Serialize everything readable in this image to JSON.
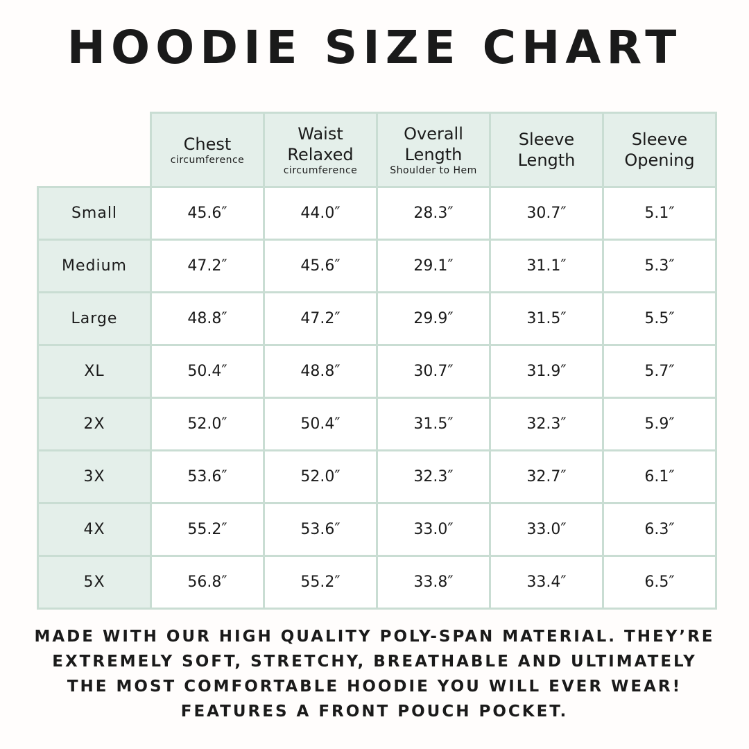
{
  "header": {
    "title": "HOODIE SIZE CHART"
  },
  "table": {
    "columns": [
      {
        "main": "Chest",
        "sub": "circumference"
      },
      {
        "main": "Waist Relaxed",
        "sub": "circumference"
      },
      {
        "main": "Overall Length",
        "sub": "Shoulder to Hem"
      },
      {
        "main": "Sleeve Length"
      },
      {
        "main": "Sleeve Opening"
      }
    ],
    "row_labels": [
      "Small",
      "Medium",
      "Large",
      "XL",
      "2X",
      "3X",
      "4X",
      "5X"
    ],
    "rows": [
      [
        "45.6″",
        "44.0″",
        "28.3″",
        "30.7″",
        "5.1″"
      ],
      [
        "47.2″",
        "45.6″",
        "29.1″",
        "31.1″",
        "5.3″"
      ],
      [
        "48.8″",
        "47.2″",
        "29.9″",
        "31.5″",
        "5.5″"
      ],
      [
        "50.4″",
        "48.8″",
        "30.7″",
        "31.9″",
        "5.7″"
      ],
      [
        "52.0″",
        "50.4″",
        "31.5″",
        "32.3″",
        "5.9″"
      ],
      [
        "53.6″",
        "52.0″",
        "32.3″",
        "32.7″",
        "6.1″"
      ],
      [
        "55.2″",
        "53.6″",
        "33.0″",
        "33.0″",
        "6.3″"
      ],
      [
        "56.8″",
        "55.2″",
        "33.8″",
        "33.4″",
        "6.5″"
      ]
    ]
  },
  "footer": {
    "lines": [
      "MADE WITH OUR HIGH QUALITY POLY-SPAN MATERIAL. THEY’RE",
      "EXTREMELY SOFT, STRETCHY, BREATHABLE AND ULTIMATELY",
      "THE MOST COMFORTABLE HOODIE YOU WILL EVER WEAR!",
      "FEATURES A FRONT POUCH POCKET."
    ]
  }
}
